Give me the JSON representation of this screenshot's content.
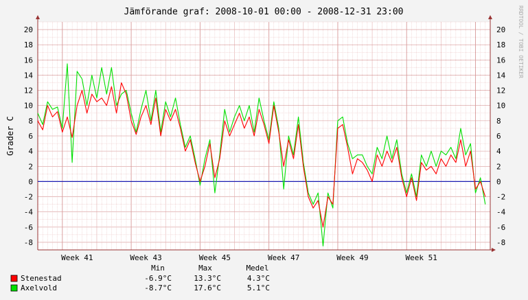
{
  "chart_data": {
    "type": "line",
    "title": "Jämförande graf: 2008-10-01 00:00 - 2008-12-31 23:00",
    "ylabel": "Grader C",
    "watermark": "RRDTOOL / TOBI OETIKER",
    "ylim": [
      -9,
      21
    ],
    "yticks": [
      -8,
      -6,
      -4,
      -2,
      0,
      2,
      4,
      6,
      8,
      10,
      12,
      14,
      16,
      18,
      20
    ],
    "xlim": [
      "2008-10-01",
      "2009-01-01"
    ],
    "xticks": [
      {
        "label": "Week 41",
        "date": "2008-10-09"
      },
      {
        "label": "Week 43",
        "date": "2008-10-23"
      },
      {
        "label": "Week 45",
        "date": "2008-11-06"
      },
      {
        "label": "Week 47",
        "date": "2008-11-20"
      },
      {
        "label": "Week 49",
        "date": "2008-12-04"
      },
      {
        "label": "Week 51",
        "date": "2008-12-18"
      }
    ],
    "grid": true,
    "zero_line": true,
    "colors": {
      "background": "#f3f3f3",
      "canvas": "#ffffff",
      "grid_minor": "#e7b8b8",
      "grid_major": "#d89a9a",
      "axis": "#999999",
      "zero": "#1a1ab0",
      "text": "#000000"
    },
    "legend": {
      "headers": [
        "Min",
        "Max",
        "Medel"
      ],
      "placement": "bottom"
    },
    "series": [
      {
        "name": "Stenestad",
        "color": "#ff0000",
        "stats": {
          "min": "-6.9°C",
          "max": "13.3°C",
          "mean": "4.3°C"
        },
        "points": [
          [
            "2008-10-01",
            8.0
          ],
          [
            "2008-10-02",
            6.8
          ],
          [
            "2008-10-03",
            10.0
          ],
          [
            "2008-10-04",
            8.5
          ],
          [
            "2008-10-05",
            9.2
          ],
          [
            "2008-10-06",
            6.5
          ],
          [
            "2008-10-07",
            8.5
          ],
          [
            "2008-10-08",
            5.8
          ],
          [
            "2008-10-09",
            10.0
          ],
          [
            "2008-10-10",
            12.0
          ],
          [
            "2008-10-11",
            9.0
          ],
          [
            "2008-10-12",
            11.5
          ],
          [
            "2008-10-13",
            10.5
          ],
          [
            "2008-10-14",
            11.0
          ],
          [
            "2008-10-15",
            10.0
          ],
          [
            "2008-10-16",
            12.5
          ],
          [
            "2008-10-17",
            9.0
          ],
          [
            "2008-10-18",
            13.0
          ],
          [
            "2008-10-19",
            11.5
          ],
          [
            "2008-10-20",
            8.0
          ],
          [
            "2008-10-21",
            6.2
          ],
          [
            "2008-10-22",
            8.5
          ],
          [
            "2008-10-23",
            10.0
          ],
          [
            "2008-10-24",
            7.5
          ],
          [
            "2008-10-25",
            11.0
          ],
          [
            "2008-10-26",
            6.0
          ],
          [
            "2008-10-27",
            9.5
          ],
          [
            "2008-10-28",
            8.0
          ],
          [
            "2008-10-29",
            9.5
          ],
          [
            "2008-10-30",
            7.0
          ],
          [
            "2008-10-31",
            4.0
          ],
          [
            "2008-11-01",
            5.5
          ],
          [
            "2008-11-02",
            2.5
          ],
          [
            "2008-11-03",
            0.0
          ],
          [
            "2008-11-04",
            2.0
          ],
          [
            "2008-11-05",
            5.0
          ],
          [
            "2008-11-06",
            0.5
          ],
          [
            "2008-11-07",
            3.0
          ],
          [
            "2008-11-08",
            8.0
          ],
          [
            "2008-11-09",
            6.0
          ],
          [
            "2008-11-10",
            7.5
          ],
          [
            "2008-11-11",
            9.0
          ],
          [
            "2008-11-12",
            7.0
          ],
          [
            "2008-11-13",
            8.5
          ],
          [
            "2008-11-14",
            6.0
          ],
          [
            "2008-11-15",
            9.5
          ],
          [
            "2008-11-16",
            7.5
          ],
          [
            "2008-11-17",
            5.0
          ],
          [
            "2008-11-18",
            10.0
          ],
          [
            "2008-11-19",
            6.5
          ],
          [
            "2008-11-20",
            2.0
          ],
          [
            "2008-11-21",
            5.5
          ],
          [
            "2008-11-22",
            3.0
          ],
          [
            "2008-11-23",
            7.5
          ],
          [
            "2008-11-24",
            2.0
          ],
          [
            "2008-11-25",
            -2.0
          ],
          [
            "2008-11-26",
            -3.5
          ],
          [
            "2008-11-27",
            -2.5
          ],
          [
            "2008-11-28",
            -6.0
          ],
          [
            "2008-11-29",
            -2.0
          ],
          [
            "2008-11-30",
            -3.0
          ],
          [
            "2008-12-01",
            7.0
          ],
          [
            "2008-12-02",
            7.5
          ],
          [
            "2008-12-03",
            4.5
          ],
          [
            "2008-12-04",
            1.0
          ],
          [
            "2008-12-05",
            3.0
          ],
          [
            "2008-12-06",
            2.5
          ],
          [
            "2008-12-07",
            1.5
          ],
          [
            "2008-12-08",
            0.0
          ],
          [
            "2008-12-09",
            3.5
          ],
          [
            "2008-12-10",
            2.0
          ],
          [
            "2008-12-11",
            4.0
          ],
          [
            "2008-12-12",
            2.5
          ],
          [
            "2008-12-13",
            4.5
          ],
          [
            "2008-12-14",
            0.5
          ],
          [
            "2008-12-15",
            -2.0
          ],
          [
            "2008-12-16",
            0.5
          ],
          [
            "2008-12-17",
            -2.5
          ],
          [
            "2008-12-18",
            2.5
          ],
          [
            "2008-12-19",
            1.5
          ],
          [
            "2008-12-20",
            2.0
          ],
          [
            "2008-12-21",
            1.0
          ],
          [
            "2008-12-22",
            3.0
          ],
          [
            "2008-12-23",
            2.0
          ],
          [
            "2008-12-24",
            3.5
          ],
          [
            "2008-12-25",
            2.5
          ],
          [
            "2008-12-26",
            5.5
          ],
          [
            "2008-12-27",
            2.0
          ],
          [
            "2008-12-28",
            4.0
          ],
          [
            "2008-12-29",
            -1.0
          ],
          [
            "2008-12-30",
            0.0
          ],
          [
            "2008-12-31",
            -2.0
          ]
        ]
      },
      {
        "name": "Axelvold",
        "color": "#00e000",
        "stats": {
          "min": "-8.7°C",
          "max": "17.6°C",
          "mean": "5.1°C"
        },
        "points": [
          [
            "2008-10-01",
            9.0
          ],
          [
            "2008-10-02",
            7.5
          ],
          [
            "2008-10-03",
            10.5
          ],
          [
            "2008-10-04",
            9.5
          ],
          [
            "2008-10-05",
            9.8
          ],
          [
            "2008-10-06",
            7.0
          ],
          [
            "2008-10-07",
            15.5
          ],
          [
            "2008-10-08",
            2.5
          ],
          [
            "2008-10-09",
            14.5
          ],
          [
            "2008-10-10",
            13.5
          ],
          [
            "2008-10-11",
            10.0
          ],
          [
            "2008-10-12",
            14.0
          ],
          [
            "2008-10-13",
            11.0
          ],
          [
            "2008-10-14",
            15.0
          ],
          [
            "2008-10-15",
            11.5
          ],
          [
            "2008-10-16",
            15.0
          ],
          [
            "2008-10-17",
            10.0
          ],
          [
            "2008-10-18",
            11.5
          ],
          [
            "2008-10-19",
            12.0
          ],
          [
            "2008-10-20",
            9.0
          ],
          [
            "2008-10-21",
            6.5
          ],
          [
            "2008-10-22",
            9.5
          ],
          [
            "2008-10-23",
            12.0
          ],
          [
            "2008-10-24",
            8.0
          ],
          [
            "2008-10-25",
            12.0
          ],
          [
            "2008-10-26",
            6.5
          ],
          [
            "2008-10-27",
            10.5
          ],
          [
            "2008-10-28",
            8.5
          ],
          [
            "2008-10-29",
            11.0
          ],
          [
            "2008-10-30",
            7.5
          ],
          [
            "2008-10-31",
            4.5
          ],
          [
            "2008-11-01",
            6.0
          ],
          [
            "2008-11-02",
            3.0
          ],
          [
            "2008-11-03",
            -0.5
          ],
          [
            "2008-11-04",
            3.0
          ],
          [
            "2008-11-05",
            5.5
          ],
          [
            "2008-11-06",
            -1.5
          ],
          [
            "2008-11-07",
            3.5
          ],
          [
            "2008-11-08",
            9.5
          ],
          [
            "2008-11-09",
            6.5
          ],
          [
            "2008-11-10",
            8.5
          ],
          [
            "2008-11-11",
            10.0
          ],
          [
            "2008-11-12",
            8.0
          ],
          [
            "2008-11-13",
            10.0
          ],
          [
            "2008-11-14",
            6.5
          ],
          [
            "2008-11-15",
            11.0
          ],
          [
            "2008-11-16",
            8.0
          ],
          [
            "2008-11-17",
            5.5
          ],
          [
            "2008-11-18",
            10.5
          ],
          [
            "2008-11-19",
            7.0
          ],
          [
            "2008-11-20",
            -1.0
          ],
          [
            "2008-11-21",
            6.0
          ],
          [
            "2008-11-22",
            3.5
          ],
          [
            "2008-11-23",
            8.5
          ],
          [
            "2008-11-24",
            2.5
          ],
          [
            "2008-11-25",
            -1.5
          ],
          [
            "2008-11-26",
            -3.0
          ],
          [
            "2008-11-27",
            -1.5
          ],
          [
            "2008-11-28",
            -8.5
          ],
          [
            "2008-11-29",
            -1.5
          ],
          [
            "2008-11-30",
            -3.5
          ],
          [
            "2008-12-01",
            8.0
          ],
          [
            "2008-12-02",
            8.5
          ],
          [
            "2008-12-03",
            5.0
          ],
          [
            "2008-12-04",
            3.0
          ],
          [
            "2008-12-05",
            3.5
          ],
          [
            "2008-12-06",
            3.5
          ],
          [
            "2008-12-07",
            2.0
          ],
          [
            "2008-12-08",
            1.0
          ],
          [
            "2008-12-09",
            4.5
          ],
          [
            "2008-12-10",
            3.0
          ],
          [
            "2008-12-11",
            6.0
          ],
          [
            "2008-12-12",
            3.0
          ],
          [
            "2008-12-13",
            5.5
          ],
          [
            "2008-12-14",
            1.0
          ],
          [
            "2008-12-15",
            -1.5
          ],
          [
            "2008-12-16",
            1.0
          ],
          [
            "2008-12-17",
            -2.0
          ],
          [
            "2008-12-18",
            3.5
          ],
          [
            "2008-12-19",
            2.0
          ],
          [
            "2008-12-20",
            4.0
          ],
          [
            "2008-12-21",
            2.0
          ],
          [
            "2008-12-22",
            4.0
          ],
          [
            "2008-12-23",
            3.5
          ],
          [
            "2008-12-24",
            4.5
          ],
          [
            "2008-12-25",
            3.0
          ],
          [
            "2008-12-26",
            7.0
          ],
          [
            "2008-12-27",
            3.5
          ],
          [
            "2008-12-28",
            5.0
          ],
          [
            "2008-12-29",
            -1.5
          ],
          [
            "2008-12-30",
            0.5
          ],
          [
            "2008-12-31",
            -3.0
          ]
        ]
      }
    ]
  }
}
